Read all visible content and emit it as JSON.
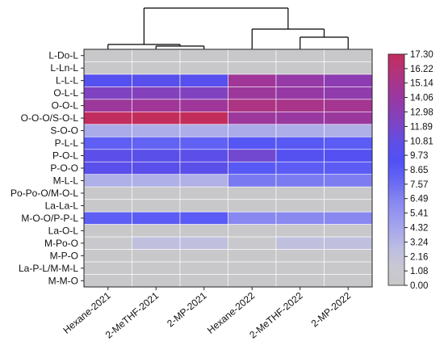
{
  "chart_data": {
    "type": "heatmap",
    "rows": [
      "L-Do-L",
      "L-Ln-L",
      "L-L-L",
      "O-L-L",
      "O-O-L",
      "O-O-O/S-O-L",
      "S-O-O",
      "P-L-L",
      "P-O-L",
      "P-O-O",
      "M-L-L",
      "Po-Po-O/M-O-L",
      "La-La-L",
      "M-O-O/P-P-L",
      "La-O-L",
      "M-Po-O",
      "M-P-O",
      "La-P-L/M-M-L",
      "M-M-O"
    ],
    "columns": [
      "Hexane-2021",
      "2-MeTHF-2021",
      "2-MP-2021",
      "Hexane-2022",
      "2-MeTHF-2022",
      "2-MP-2022"
    ],
    "values": [
      [
        0.2,
        0.2,
        0.2,
        0.2,
        0.2,
        0.2
      ],
      [
        0.4,
        0.4,
        0.4,
        0.4,
        0.4,
        0.4
      ],
      [
        9.8,
        10.0,
        9.9,
        14.6,
        13.8,
        13.2
      ],
      [
        12.3,
        12.6,
        12.4,
        14.3,
        13.9,
        13.4
      ],
      [
        14.3,
        14.6,
        14.5,
        15.6,
        15.2,
        14.9
      ],
      [
        17.2,
        17.3,
        17.3,
        14.3,
        14.1,
        14.2
      ],
      [
        3.9,
        3.8,
        3.8,
        3.9,
        3.8,
        3.6
      ],
      [
        8.3,
        8.1,
        8.2,
        8.9,
        8.8,
        8.6
      ],
      [
        10.4,
        10.3,
        10.4,
        11.6,
        9.8,
        9.7
      ],
      [
        10.2,
        10.2,
        10.3,
        8.7,
        8.5,
        8.5
      ],
      [
        3.6,
        3.6,
        3.5,
        7.0,
        6.9,
        6.8
      ],
      [
        0.4,
        0.4,
        0.4,
        0.4,
        0.4,
        0.4
      ],
      [
        0.3,
        0.3,
        0.3,
        0.3,
        0.3,
        0.3
      ],
      [
        8.4,
        8.5,
        8.6,
        6.2,
        6.1,
        6.2
      ],
      [
        0.4,
        0.4,
        0.4,
        0.4,
        0.4,
        0.4
      ],
      [
        0.6,
        2.4,
        2.4,
        0.6,
        2.4,
        2.4
      ],
      [
        0.3,
        0.3,
        0.3,
        0.3,
        0.3,
        0.3
      ],
      [
        0.3,
        0.3,
        0.3,
        0.3,
        0.3,
        0.3
      ],
      [
        0.2,
        0.2,
        0.2,
        0.2,
        0.2,
        0.2
      ]
    ],
    "colorbar": {
      "min": 0.0,
      "max": 17.3,
      "ticks": [
        "0.00",
        "1.08",
        "2.16",
        "3.24",
        "4.32",
        "5.41",
        "6.49",
        "7.57",
        "8.65",
        "9.73",
        "10.81",
        "11.89",
        "12.98",
        "14.06",
        "15.14",
        "16.22",
        "17.30"
      ],
      "colors": [
        "#c8c8c8",
        "#c8c8d2",
        "#bebee1",
        "#aaaaeb",
        "#9696f0",
        "#8080f0",
        "#6464f5",
        "#5050f5",
        "#5f4fe6",
        "#7a45c8",
        "#8f3caf",
        "#a03696",
        "#b2337a",
        "#c22d5c"
      ]
    },
    "dendrogram": {
      "clusters": [
        [
          "Hexane-2021",
          [
            "2-MeTHF-2021",
            "2-MP-2021"
          ]
        ],
        [
          "Hexane-2022",
          [
            "2-MeTHF-2022",
            "2-MP-2022"
          ]
        ]
      ]
    },
    "title": "",
    "xlabel": "",
    "ylabel": ""
  }
}
